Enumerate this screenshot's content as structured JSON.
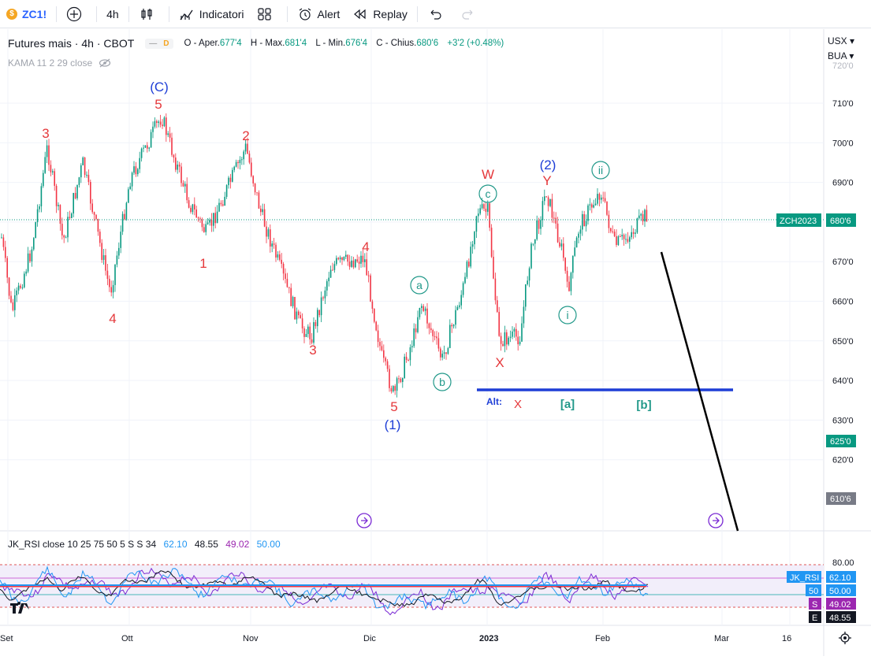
{
  "toolbar": {
    "symbol": "ZC1!",
    "symbol_badge": "$",
    "interval": "4h",
    "indicators_label": "Indicatori",
    "alert_label": "Alert",
    "replay_label": "Replay"
  },
  "legend": {
    "title": "Futures mais · 4h · CBOT",
    "badge_d": "D",
    "o_label": "O - Aper.",
    "o_value": "677'4",
    "h_label": "H - Max.",
    "h_value": "681'4",
    "l_label": "L - Min.",
    "l_value": "676'4",
    "c_label": "C - Chius.",
    "c_value": "680'6",
    "change": "+3'2 (+0.48%)",
    "kama": "KAMA 11 2 29 close"
  },
  "currency_menu": {
    "currency": "USX",
    "unit": "BUA"
  },
  "rsi_legend": {
    "name": "JK_RSI close 10 25 75 50 5 S S 34",
    "v1": "62.10",
    "v2": "48.55",
    "v3": "49.02",
    "v4": "50.00"
  },
  "price_axis": {
    "ticks": [
      "710'0",
      "700'0",
      "690'0",
      "680'0",
      "670'0",
      "660'0",
      "650'0",
      "640'0",
      "630'0",
      "620'0"
    ],
    "top_partial": "720'0",
    "symbol_label": "ZCH2023",
    "symbol_price": "680'6",
    "label_625": "625'0",
    "label_610": "610'6"
  },
  "rsi_axis": {
    "ticks": [
      "80.00"
    ],
    "jk_label": "JK_RSI",
    "jk_value": "62.10",
    "fifty_label": "50",
    "fifty_value": "50.00",
    "s_label": "S",
    "s_value": "49.02",
    "e_label": "E",
    "e_value": "48.55"
  },
  "time_axis": [
    "Set",
    "Ott",
    "Nov",
    "Dic",
    "2023",
    "Feb",
    "Mar",
    "16"
  ],
  "wave_labels": {
    "C_big": "(C)",
    "five_top": "5",
    "three_a": "3",
    "four_a": "4",
    "one": "1",
    "two": "2",
    "three_b": "3",
    "four_b": "4",
    "five_b": "5",
    "wave1": "(1)",
    "a": "a",
    "b": "b",
    "c": "c",
    "W": "W",
    "X": "X",
    "wave2": "(2)",
    "Y": "Y",
    "i": "i",
    "ii": "ii",
    "alt": "Alt:",
    "alt_x": "X",
    "alt_a": "[a]",
    "alt_b": "[b]"
  },
  "colors": {
    "up": "#089981",
    "down": "#f23645",
    "blue_line": "#1e3ed6",
    "wave_red": "#e5383b",
    "wave_blue": "#1e3ed6",
    "wave_teal": "#22998a"
  }
}
